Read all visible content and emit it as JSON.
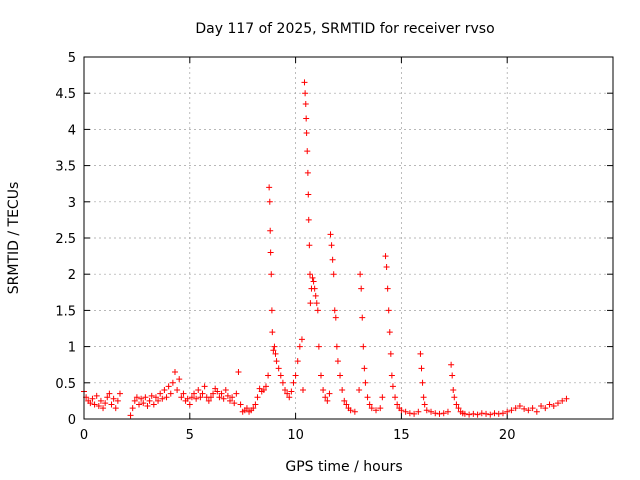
{
  "chart_data": {
    "type": "scatter",
    "title": "Day 117 of 2025, SRMTID for receiver rvso",
    "xlabel": "GPS time / hours",
    "ylabel": "SRMTID / TECUs",
    "xlim": [
      0,
      25
    ],
    "ylim": [
      0,
      5
    ],
    "xticks": [
      "0",
      "5",
      "10",
      "15",
      "20"
    ],
    "yticks": [
      "0",
      "0.5",
      "1",
      "1.5",
      "2",
      "2.5",
      "3",
      "3.5",
      "4",
      "4.5",
      "5"
    ],
    "xtick_values": [
      0,
      5,
      10,
      15,
      20
    ],
    "ytick_values": [
      0,
      0.5,
      1,
      1.5,
      2,
      2.5,
      3,
      3.5,
      4,
      4.5,
      5
    ],
    "grid": true,
    "marker": "+",
    "color": "#ff0000",
    "series": [
      {
        "name": "SRMTID",
        "points": [
          [
            0.0,
            0.38
          ],
          [
            0.1,
            0.3
          ],
          [
            0.2,
            0.25
          ],
          [
            0.3,
            0.22
          ],
          [
            0.4,
            0.28
          ],
          [
            0.5,
            0.2
          ],
          [
            0.6,
            0.32
          ],
          [
            0.7,
            0.18
          ],
          [
            0.8,
            0.25
          ],
          [
            0.9,
            0.15
          ],
          [
            1.0,
            0.22
          ],
          [
            1.1,
            0.3
          ],
          [
            1.2,
            0.35
          ],
          [
            1.3,
            0.2
          ],
          [
            1.4,
            0.28
          ],
          [
            1.5,
            0.15
          ],
          [
            1.6,
            0.25
          ],
          [
            1.7,
            0.35
          ],
          [
            2.2,
            0.05
          ],
          [
            2.3,
            0.15
          ],
          [
            2.4,
            0.25
          ],
          [
            2.5,
            0.3
          ],
          [
            2.6,
            0.2
          ],
          [
            2.7,
            0.28
          ],
          [
            2.8,
            0.22
          ],
          [
            2.9,
            0.3
          ],
          [
            3.0,
            0.18
          ],
          [
            3.1,
            0.25
          ],
          [
            3.2,
            0.32
          ],
          [
            3.3,
            0.2
          ],
          [
            3.4,
            0.3
          ],
          [
            3.5,
            0.25
          ],
          [
            3.6,
            0.35
          ],
          [
            3.7,
            0.28
          ],
          [
            3.8,
            0.4
          ],
          [
            3.9,
            0.3
          ],
          [
            4.0,
            0.45
          ],
          [
            4.1,
            0.35
          ],
          [
            4.2,
            0.5
          ],
          [
            4.3,
            0.65
          ],
          [
            4.4,
            0.4
          ],
          [
            4.5,
            0.55
          ],
          [
            4.6,
            0.3
          ],
          [
            4.7,
            0.35
          ],
          [
            4.8,
            0.25
          ],
          [
            4.9,
            0.28
          ],
          [
            5.0,
            0.2
          ],
          [
            5.1,
            0.3
          ],
          [
            5.2,
            0.35
          ],
          [
            5.3,
            0.28
          ],
          [
            5.4,
            0.4
          ],
          [
            5.5,
            0.3
          ],
          [
            5.6,
            0.35
          ],
          [
            5.7,
            0.45
          ],
          [
            5.8,
            0.3
          ],
          [
            5.9,
            0.25
          ],
          [
            6.0,
            0.3
          ],
          [
            6.1,
            0.35
          ],
          [
            6.2,
            0.42
          ],
          [
            6.3,
            0.38
          ],
          [
            6.4,
            0.3
          ],
          [
            6.5,
            0.35
          ],
          [
            6.6,
            0.28
          ],
          [
            6.7,
            0.4
          ],
          [
            6.8,
            0.32
          ],
          [
            6.9,
            0.25
          ],
          [
            7.0,
            0.3
          ],
          [
            7.1,
            0.22
          ],
          [
            7.2,
            0.35
          ],
          [
            7.3,
            0.65
          ],
          [
            7.4,
            0.2
          ],
          [
            7.5,
            0.1
          ],
          [
            7.6,
            0.12
          ],
          [
            7.7,
            0.15
          ],
          [
            7.8,
            0.1
          ],
          [
            7.9,
            0.12
          ],
          [
            8.0,
            0.15
          ],
          [
            8.1,
            0.2
          ],
          [
            8.2,
            0.3
          ],
          [
            8.3,
            0.42
          ],
          [
            8.4,
            0.38
          ],
          [
            8.5,
            0.4
          ],
          [
            8.6,
            0.45
          ],
          [
            8.7,
            0.6
          ],
          [
            8.75,
            3.2
          ],
          [
            8.78,
            3.0
          ],
          [
            8.8,
            2.6
          ],
          [
            8.82,
            2.3
          ],
          [
            8.85,
            2.0
          ],
          [
            8.88,
            1.5
          ],
          [
            8.9,
            1.2
          ],
          [
            8.95,
            0.95
          ],
          [
            9.0,
            1.0
          ],
          [
            9.05,
            0.9
          ],
          [
            9.1,
            0.8
          ],
          [
            9.2,
            0.7
          ],
          [
            9.3,
            0.6
          ],
          [
            9.4,
            0.5
          ],
          [
            9.5,
            0.4
          ],
          [
            9.6,
            0.35
          ],
          [
            9.7,
            0.3
          ],
          [
            9.8,
            0.38
          ],
          [
            9.9,
            0.5
          ],
          [
            10.0,
            0.6
          ],
          [
            10.1,
            0.8
          ],
          [
            10.2,
            1.0
          ],
          [
            10.3,
            1.1
          ],
          [
            10.35,
            0.4
          ],
          [
            10.42,
            4.65
          ],
          [
            10.45,
            4.5
          ],
          [
            10.48,
            4.35
          ],
          [
            10.5,
            4.15
          ],
          [
            10.52,
            3.95
          ],
          [
            10.55,
            3.7
          ],
          [
            10.58,
            3.4
          ],
          [
            10.6,
            3.1
          ],
          [
            10.62,
            2.75
          ],
          [
            10.65,
            2.4
          ],
          [
            10.68,
            2.0
          ],
          [
            10.7,
            1.6
          ],
          [
            10.75,
            1.8
          ],
          [
            10.8,
            1.95
          ],
          [
            10.85,
            1.9
          ],
          [
            10.9,
            1.8
          ],
          [
            10.95,
            1.7
          ],
          [
            11.0,
            1.6
          ],
          [
            11.05,
            1.5
          ],
          [
            11.1,
            1.0
          ],
          [
            11.2,
            0.6
          ],
          [
            11.3,
            0.4
          ],
          [
            11.4,
            0.3
          ],
          [
            11.5,
            0.25
          ],
          [
            11.6,
            0.35
          ],
          [
            11.65,
            2.55
          ],
          [
            11.7,
            2.4
          ],
          [
            11.75,
            2.2
          ],
          [
            11.8,
            2.0
          ],
          [
            11.85,
            1.5
          ],
          [
            11.9,
            1.4
          ],
          [
            11.95,
            1.0
          ],
          [
            12.0,
            0.8
          ],
          [
            12.1,
            0.6
          ],
          [
            12.2,
            0.4
          ],
          [
            12.3,
            0.25
          ],
          [
            12.4,
            0.2
          ],
          [
            12.5,
            0.15
          ],
          [
            12.6,
            0.12
          ],
          [
            12.8,
            0.1
          ],
          [
            13.0,
            0.4
          ],
          [
            13.05,
            2.0
          ],
          [
            13.1,
            1.8
          ],
          [
            13.15,
            1.4
          ],
          [
            13.2,
            1.0
          ],
          [
            13.25,
            0.7
          ],
          [
            13.3,
            0.5
          ],
          [
            13.4,
            0.3
          ],
          [
            13.5,
            0.2
          ],
          [
            13.6,
            0.15
          ],
          [
            13.8,
            0.12
          ],
          [
            14.0,
            0.15
          ],
          [
            14.1,
            0.3
          ],
          [
            14.25,
            2.25
          ],
          [
            14.3,
            2.1
          ],
          [
            14.35,
            1.8
          ],
          [
            14.4,
            1.5
          ],
          [
            14.45,
            1.2
          ],
          [
            14.5,
            0.9
          ],
          [
            14.55,
            0.6
          ],
          [
            14.6,
            0.45
          ],
          [
            14.7,
            0.3
          ],
          [
            14.8,
            0.2
          ],
          [
            14.9,
            0.15
          ],
          [
            15.0,
            0.12
          ],
          [
            15.2,
            0.1
          ],
          [
            15.4,
            0.08
          ],
          [
            15.6,
            0.07
          ],
          [
            15.8,
            0.1
          ],
          [
            15.9,
            0.9
          ],
          [
            15.95,
            0.7
          ],
          [
            16.0,
            0.5
          ],
          [
            16.05,
            0.3
          ],
          [
            16.1,
            0.2
          ],
          [
            16.2,
            0.12
          ],
          [
            16.4,
            0.1
          ],
          [
            16.6,
            0.08
          ],
          [
            16.8,
            0.07
          ],
          [
            17.0,
            0.08
          ],
          [
            17.2,
            0.1
          ],
          [
            17.35,
            0.75
          ],
          [
            17.4,
            0.6
          ],
          [
            17.45,
            0.4
          ],
          [
            17.5,
            0.3
          ],
          [
            17.6,
            0.2
          ],
          [
            17.7,
            0.15
          ],
          [
            17.8,
            0.1
          ],
          [
            17.9,
            0.08
          ],
          [
            18.0,
            0.07
          ],
          [
            18.2,
            0.06
          ],
          [
            18.4,
            0.07
          ],
          [
            18.6,
            0.06
          ],
          [
            18.8,
            0.08
          ],
          [
            19.0,
            0.07
          ],
          [
            19.2,
            0.06
          ],
          [
            19.4,
            0.08
          ],
          [
            19.6,
            0.07
          ],
          [
            19.8,
            0.08
          ],
          [
            20.0,
            0.1
          ],
          [
            20.2,
            0.12
          ],
          [
            20.4,
            0.15
          ],
          [
            20.6,
            0.18
          ],
          [
            20.8,
            0.14
          ],
          [
            21.0,
            0.12
          ],
          [
            21.2,
            0.15
          ],
          [
            21.4,
            0.1
          ],
          [
            21.6,
            0.18
          ],
          [
            21.8,
            0.15
          ],
          [
            22.0,
            0.2
          ],
          [
            22.2,
            0.18
          ],
          [
            22.4,
            0.22
          ],
          [
            22.6,
            0.25
          ],
          [
            22.8,
            0.28
          ]
        ]
      }
    ]
  }
}
